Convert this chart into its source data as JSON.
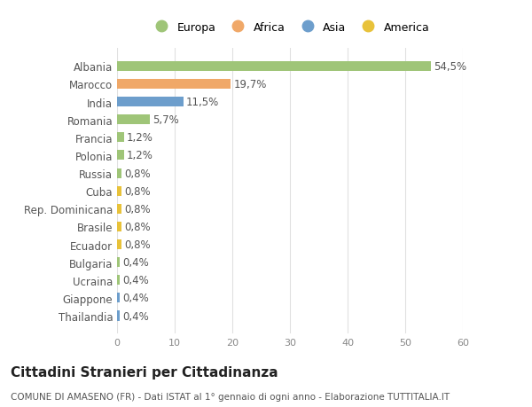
{
  "categories": [
    "Thailandia",
    "Giappone",
    "Ucraina",
    "Bulgaria",
    "Ecuador",
    "Brasile",
    "Rep. Dominicana",
    "Cuba",
    "Russia",
    "Polonia",
    "Francia",
    "Romania",
    "India",
    "Marocco",
    "Albania"
  ],
  "values": [
    0.4,
    0.4,
    0.4,
    0.4,
    0.8,
    0.8,
    0.8,
    0.8,
    0.8,
    1.2,
    1.2,
    5.7,
    11.5,
    19.7,
    54.5
  ],
  "labels": [
    "0,4%",
    "0,4%",
    "0,4%",
    "0,4%",
    "0,8%",
    "0,8%",
    "0,8%",
    "0,8%",
    "0,8%",
    "1,2%",
    "1,2%",
    "5,7%",
    "11,5%",
    "19,7%",
    "54,5%"
  ],
  "colors": [
    "#6d9ecc",
    "#6d9ecc",
    "#9fc578",
    "#9fc578",
    "#e8c23a",
    "#e8c23a",
    "#e8c23a",
    "#e8c23a",
    "#9fc578",
    "#9fc578",
    "#9fc578",
    "#9fc578",
    "#6d9ecc",
    "#f0a868",
    "#9fc578"
  ],
  "legend_labels": [
    "Europa",
    "Africa",
    "Asia",
    "America"
  ],
  "legend_colors": [
    "#9fc578",
    "#f0a868",
    "#6d9ecc",
    "#e8c23a"
  ],
  "title": "Cittadini Stranieri per Cittadinanza",
  "subtitle": "COMUNE DI AMASENO (FR) - Dati ISTAT al 1° gennaio di ogni anno - Elaborazione TUTTITALIA.IT",
  "xlim": [
    0,
    60
  ],
  "xticks": [
    0,
    10,
    20,
    30,
    40,
    50,
    60
  ],
  "background_color": "#ffffff",
  "grid_color": "#e0e0e0",
  "label_fontsize": 8.5,
  "ytick_fontsize": 8.5,
  "xtick_fontsize": 8,
  "title_fontsize": 11,
  "subtitle_fontsize": 7.5
}
